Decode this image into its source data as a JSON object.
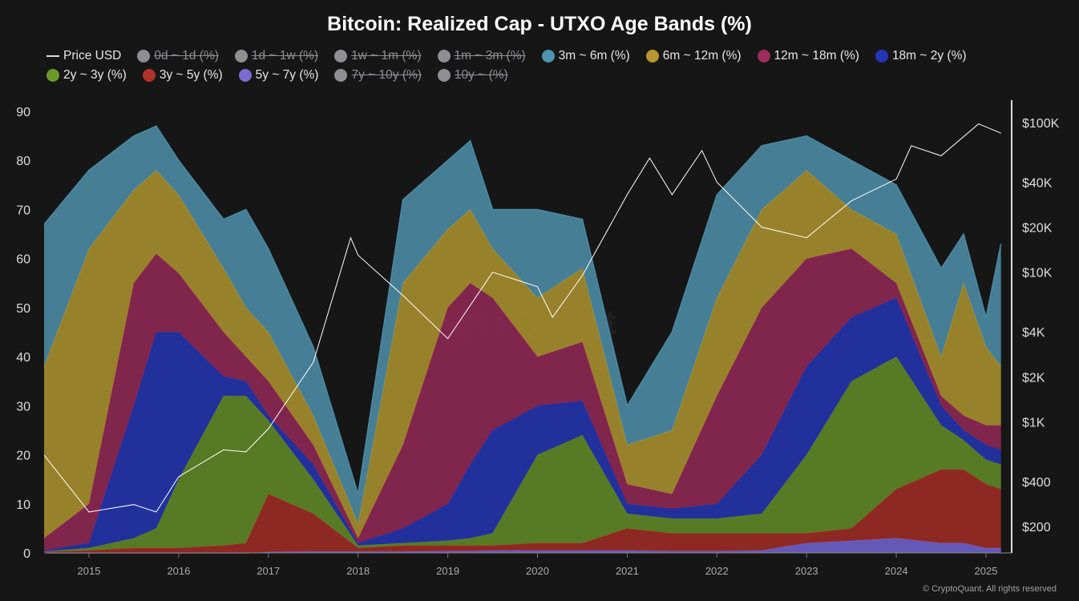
{
  "chart_data": {
    "type": "area",
    "stacked": true,
    "title": "Bitcoin: Realized Cap - UTXO Age Bands (%)",
    "ylim": [
      0,
      90
    ],
    "yticks": [
      "0",
      "10",
      "20",
      "30",
      "40",
      "50",
      "60",
      "70",
      "80",
      "90"
    ],
    "xticks": [
      "2015",
      "2016",
      "2017",
      "2018",
      "2019",
      "2020",
      "2021",
      "2022",
      "2023",
      "2024",
      "2025"
    ],
    "y2": {
      "scale": "log",
      "ticks": [
        "$200",
        "$400",
        "$1K",
        "$2K",
        "$4K",
        "$10K",
        "$20K",
        "$40K",
        "$100K"
      ],
      "tick_values": [
        200,
        400,
        1000,
        2000,
        4000,
        10000,
        20000,
        40000,
        100000
      ]
    },
    "grid": false,
    "legend_position": "top",
    "x": [
      "2014-07",
      "2015-01",
      "2015-07",
      "2015-10",
      "2016-01",
      "2016-07",
      "2016-10",
      "2017-01",
      "2017-07",
      "2018-01",
      "2018-07",
      "2019-01",
      "2019-04",
      "2019-07",
      "2020-01",
      "2020-07",
      "2021-01",
      "2021-07",
      "2022-01",
      "2022-07",
      "2023-01",
      "2023-07",
      "2024-01",
      "2024-07",
      "2024-10",
      "2025-01",
      "2025-03"
    ],
    "series": [
      {
        "name": "5y ~ 7y (%)",
        "color": "#6f5fc8",
        "values": [
          0,
          0,
          0,
          0,
          0,
          0,
          0,
          0.2,
          0.3,
          0.3,
          0.3,
          0.4,
          0.4,
          0.5,
          0.5,
          0.5,
          0.5,
          0.4,
          0.4,
          0.5,
          2,
          2.5,
          3,
          2,
          2,
          1,
          1
        ]
      },
      {
        "name": "3y ~ 5y (%)",
        "color": "#9a2b24",
        "values": [
          0.2,
          0.5,
          1,
          1,
          1,
          1.5,
          2,
          11.8,
          7.7,
          0.7,
          1.2,
          1.1,
          1.1,
          1,
          1.5,
          1.5,
          4.5,
          3.6,
          3.6,
          3.5,
          2,
          2.5,
          10,
          15,
          15,
          13,
          12
        ]
      },
      {
        "name": "2y ~ 3y (%)",
        "color": "#5e8526",
        "values": [
          0.1,
          0.5,
          2,
          4,
          14,
          30.5,
          30,
          15,
          7,
          0.5,
          0.5,
          1,
          1.5,
          2.5,
          18,
          22,
          3,
          3,
          3,
          4,
          16,
          30,
          27,
          9,
          6,
          5,
          5
        ]
      },
      {
        "name": "18m ~ 2y (%)",
        "color": "#2233a8",
        "values": [
          0.2,
          1,
          27,
          40,
          30,
          4,
          3,
          1,
          3,
          0.5,
          3,
          7.5,
          15,
          21,
          10,
          7,
          2,
          2,
          3,
          12,
          18,
          13,
          12,
          4,
          2,
          3,
          3
        ]
      },
      {
        "name": "12m ~ 18m (%)",
        "color": "#8c2752",
        "values": [
          2.5,
          8,
          25,
          16,
          12,
          9,
          5,
          7,
          4,
          1,
          17,
          40,
          37,
          27,
          10,
          12,
          4,
          3,
          22,
          30,
          22,
          14,
          3,
          2,
          3,
          4,
          5
        ]
      },
      {
        "name": "6m ~ 12m (%)",
        "color": "#a68d2e",
        "values": [
          35,
          52,
          19,
          17,
          16,
          13,
          10,
          10,
          6,
          3,
          33,
          16,
          15,
          10,
          12,
          15,
          8,
          13,
          20,
          20,
          18,
          8,
          10,
          8,
          27,
          16,
          12
        ]
      },
      {
        "name": "3m ~ 6m (%)",
        "color": "#4a8aa3",
        "values": [
          29,
          16,
          11,
          9,
          7,
          10,
          20,
          17,
          14,
          6,
          17,
          14,
          14,
          8,
          18,
          10,
          8,
          20,
          21,
          13,
          7,
          10,
          10,
          18,
          10,
          6,
          25
        ]
      }
    ],
    "price": {
      "name": "Price USD",
      "color": "#ffffff",
      "x": [
        "2014-07",
        "2015-01",
        "2015-07",
        "2015-10",
        "2016-01",
        "2016-07",
        "2016-10",
        "2017-01",
        "2017-07",
        "2017-12",
        "2018-01",
        "2018-07",
        "2019-01",
        "2019-07",
        "2020-01",
        "2020-03",
        "2020-07",
        "2021-01",
        "2021-04",
        "2021-07",
        "2021-11",
        "2022-01",
        "2022-07",
        "2023-01",
        "2023-07",
        "2024-01",
        "2024-03",
        "2024-07",
        "2024-12",
        "2025-03"
      ],
      "values": [
        600,
        250,
        280,
        250,
        430,
        650,
        630,
        900,
        2500,
        17000,
        13000,
        7000,
        3600,
        10000,
        8000,
        5000,
        9500,
        33000,
        58000,
        33000,
        65000,
        40000,
        20000,
        17000,
        30000,
        42000,
        70000,
        60000,
        98000,
        85000
      ]
    }
  },
  "legend": [
    {
      "label": "Price USD",
      "type": "line",
      "color": "#dddddd",
      "active": true
    },
    {
      "label": "0d ~ 1d (%)",
      "color": "#8e8e93",
      "active": false
    },
    {
      "label": "1d ~ 1w (%)",
      "color": "#8e8e93",
      "active": false
    },
    {
      "label": "1w ~ 1m (%)",
      "color": "#8e8e93",
      "active": false
    },
    {
      "label": "1m ~ 3m (%)",
      "color": "#8e8e93",
      "active": false
    },
    {
      "label": "3m ~ 6m (%)",
      "color": "#4f93b0",
      "active": true
    },
    {
      "label": "6m ~ 12m (%)",
      "color": "#b8952f",
      "active": true
    },
    {
      "label": "12m ~ 18m (%)",
      "color": "#9c2d5c",
      "active": true
    },
    {
      "label": "18m ~ 2y (%)",
      "color": "#2335b5",
      "active": true
    },
    {
      "label": "2y ~ 3y (%)",
      "color": "#6a9a2a",
      "active": true
    },
    {
      "label": "3y ~ 5y (%)",
      "color": "#b0332b",
      "active": true
    },
    {
      "label": "5y ~ 7y (%)",
      "color": "#7a6acf",
      "active": true
    },
    {
      "label": "7y ~ 10y (%)",
      "color": "#8e8e93",
      "active": false
    },
    {
      "label": "10y ~ (%)",
      "color": "#8e8e93",
      "active": false
    }
  ],
  "watermark": "CryptoQuant",
  "copyright": "© CryptoQuant. All rights reserved"
}
